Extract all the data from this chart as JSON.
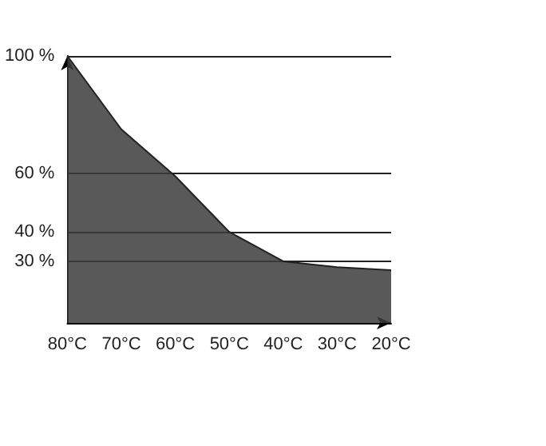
{
  "chart_data": {
    "type": "area",
    "categories": [
      "80°C",
      "70°C",
      "60°C",
      "50°C",
      "40°C",
      "30°C",
      "20°C"
    ],
    "series": [
      {
        "color": "#3c3c3c",
        "values": [
          100,
          75,
          59,
          40,
          30,
          28,
          27
        ]
      }
    ],
    "ylim": [
      9,
      100
    ],
    "yticks": [
      {
        "value": 30,
        "label": "30 %"
      },
      {
        "value": 40,
        "label": "40 %"
      },
      {
        "value": 60,
        "label": "60 %"
      },
      {
        "value": 100,
        "label": "100 %"
      }
    ],
    "grid": "y",
    "marker": "none"
  }
}
